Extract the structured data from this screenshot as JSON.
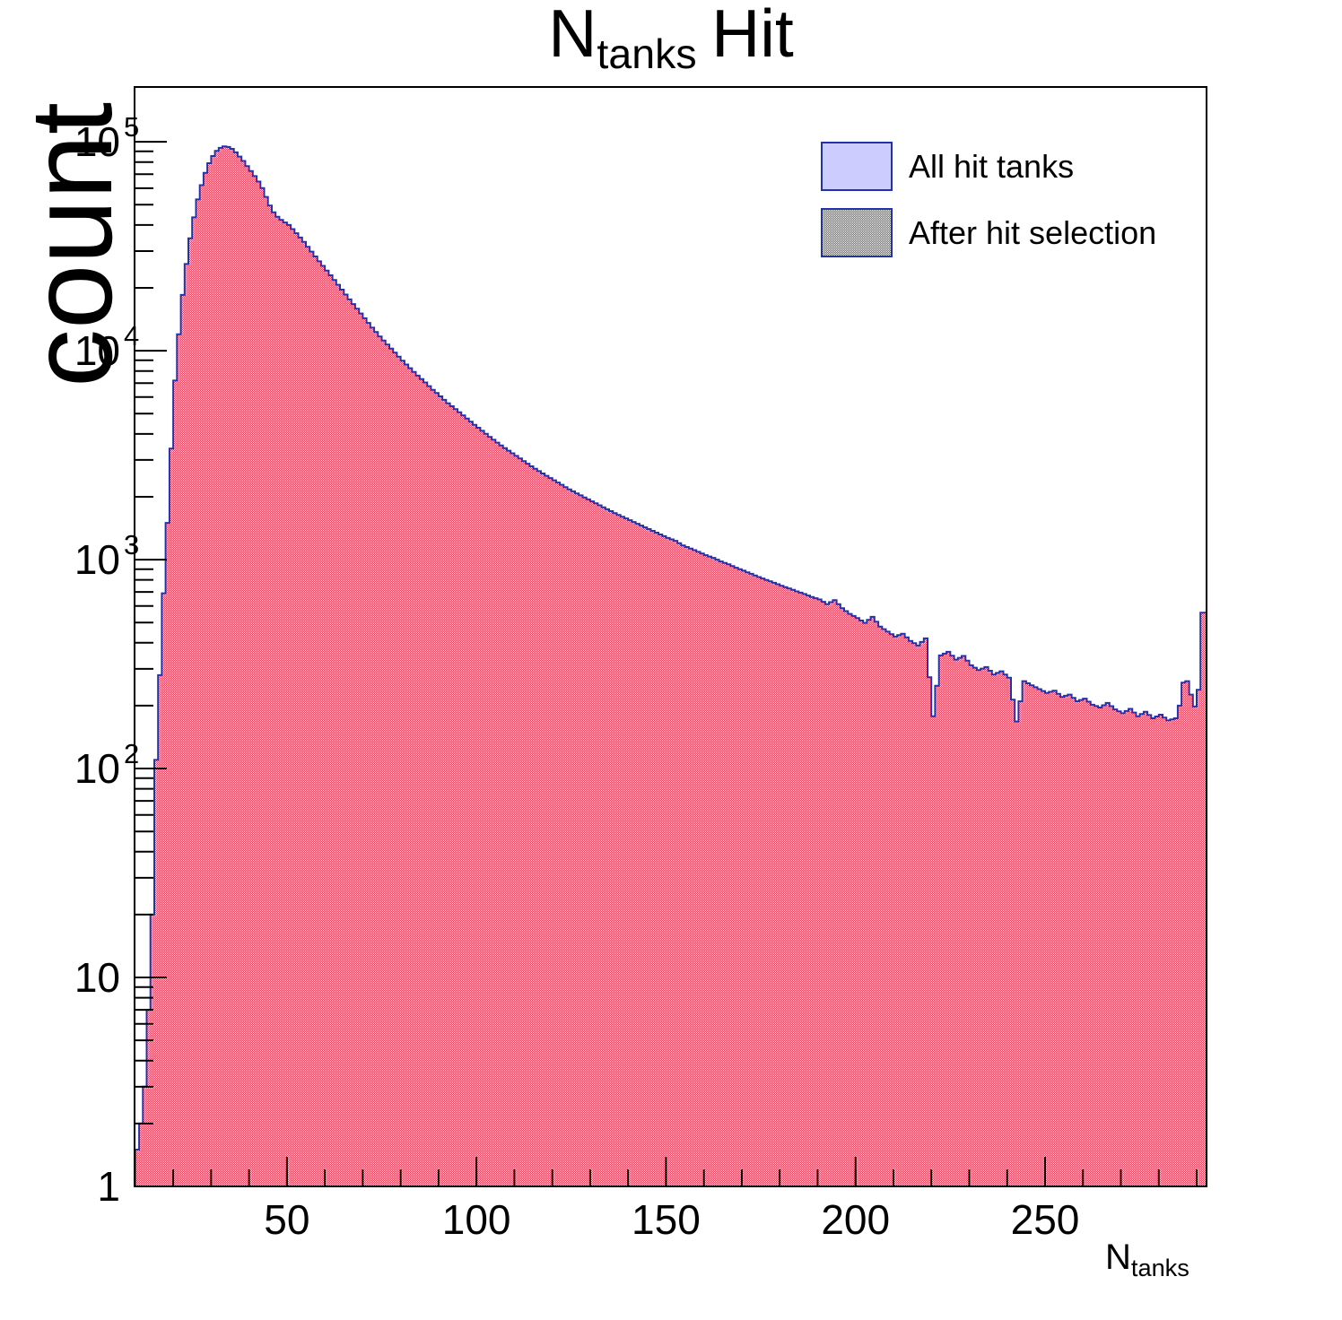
{
  "title": {
    "prefix": "N",
    "subscript": "tanks",
    "suffix": "Hit"
  },
  "axes": {
    "y_label": "count",
    "x_label": {
      "prefix": "N",
      "subscript": "tanks"
    },
    "x_ticks": [
      {
        "v": 50,
        "label": "50"
      },
      {
        "v": 100,
        "label": "100"
      },
      {
        "v": 150,
        "label": "150"
      },
      {
        "v": 200,
        "label": "200"
      },
      {
        "v": 250,
        "label": "250"
      }
    ],
    "x_minor_step": 10,
    "y_ticks": [
      {
        "v": 1,
        "m": "1"
      },
      {
        "v": 10,
        "m": "10"
      },
      {
        "v": 100,
        "m": "10",
        "e": "2"
      },
      {
        "v": 1000,
        "m": "10",
        "e": "3"
      },
      {
        "v": 10000,
        "m": "10",
        "e": "4"
      },
      {
        "v": 100000,
        "m": "10",
        "e": "5"
      }
    ]
  },
  "legend": [
    {
      "label": "All hit tanks",
      "swatch": "solid-lavender"
    },
    {
      "label": "After hit selection",
      "swatch": "red-checker-hatch"
    }
  ],
  "colors": {
    "background": "#ffffff",
    "axis": "#000000",
    "text": "#000000",
    "hist_line": "#2233aa",
    "hist_fill_all": "#ccccff",
    "hatch_red": "#e8334d",
    "hatch_bg": "#ffffff"
  },
  "chart_data": {
    "type": "bar",
    "title": "N_tanks Hit",
    "xlabel": "N_tanks",
    "ylabel": "count",
    "x_range": [
      9.8,
      292.6
    ],
    "ylim": [
      1,
      183000
    ],
    "log_y": true,
    "bin_width": 1,
    "grid": false,
    "legend_position": "top-right",
    "series": [
      {
        "name": "All hit tanks",
        "style": "solid lavender fill, navy outline",
        "values_from": "bins"
      },
      {
        "name": "After hit selection",
        "style": "red checker hatch over white, navy outline",
        "values_from": "bins",
        "note": "visually coincident with 'All hit tanks'"
      }
    ],
    "bins": [
      [
        10,
        1.5
      ],
      [
        11,
        2
      ],
      [
        12,
        3
      ],
      [
        13,
        7
      ],
      [
        14,
        20
      ],
      [
        15,
        110
      ],
      [
        16,
        280
      ],
      [
        17,
        690
      ],
      [
        18,
        1500
      ],
      [
        19,
        3400
      ],
      [
        20,
        7200
      ],
      [
        21,
        12000
      ],
      [
        22,
        18500
      ],
      [
        23,
        26000
      ],
      [
        24,
        34500
      ],
      [
        25,
        43500
      ],
      [
        26,
        53000
      ],
      [
        27,
        62000
      ],
      [
        28,
        71000
      ],
      [
        29,
        79000
      ],
      [
        30,
        85500
      ],
      [
        31,
        90500
      ],
      [
        32,
        93500
      ],
      [
        33,
        95000
      ],
      [
        34,
        94500
      ],
      [
        35,
        92500
      ],
      [
        36,
        89000
      ],
      [
        37,
        85000
      ],
      [
        38,
        81000
      ],
      [
        39,
        76500
      ],
      [
        40,
        72500
      ],
      [
        41,
        68500
      ],
      [
        42,
        64500
      ],
      [
        43,
        60000
      ],
      [
        44,
        54500
      ],
      [
        45,
        49500
      ],
      [
        46,
        46000
      ],
      [
        47,
        43800
      ],
      [
        48,
        42300
      ],
      [
        49,
        41100
      ],
      [
        50,
        40000
      ],
      [
        52,
        36500
      ],
      [
        54,
        33200
      ],
      [
        56,
        29800
      ],
      [
        58,
        26800
      ],
      [
        60,
        24200
      ],
      [
        62,
        21800
      ],
      [
        64,
        19600
      ],
      [
        66,
        17600
      ],
      [
        68,
        15900
      ],
      [
        70,
        14300
      ],
      [
        72,
        12900
      ],
      [
        74,
        11700
      ],
      [
        76,
        10700
      ],
      [
        78,
        9800
      ],
      [
        80,
        8950
      ],
      [
        82,
        8250
      ],
      [
        84,
        7600
      ],
      [
        86,
        7050
      ],
      [
        88,
        6500
      ],
      [
        90,
        6050
      ],
      [
        92,
        5600
      ],
      [
        94,
        5250
      ],
      [
        96,
        4900
      ],
      [
        98,
        4570
      ],
      [
        100,
        4280
      ],
      [
        103,
        3870
      ],
      [
        106,
        3520
      ],
      [
        109,
        3230
      ],
      [
        112,
        2960
      ],
      [
        115,
        2720
      ],
      [
        118,
        2520
      ],
      [
        121,
        2340
      ],
      [
        124,
        2170
      ],
      [
        127,
        2030
      ],
      [
        130,
        1900
      ],
      [
        133,
        1780
      ],
      [
        136,
        1670
      ],
      [
        139,
        1575
      ],
      [
        142,
        1485
      ],
      [
        145,
        1400
      ],
      [
        148,
        1320
      ],
      [
        150,
        1270
      ],
      [
        152,
        1230
      ],
      [
        154,
        1170
      ],
      [
        156,
        1130
      ],
      [
        158,
        1090
      ],
      [
        160,
        1050
      ],
      [
        162,
        1020
      ],
      [
        164,
        980
      ],
      [
        166,
        950
      ],
      [
        168,
        915
      ],
      [
        170,
        885
      ],
      [
        172,
        855
      ],
      [
        174,
        825
      ],
      [
        176,
        800
      ],
      [
        178,
        775
      ],
      [
        180,
        750
      ],
      [
        182,
        728
      ],
      [
        184,
        705
      ],
      [
        186,
        685
      ],
      [
        188,
        662
      ],
      [
        190,
        645
      ],
      [
        192,
        612
      ],
      [
        194,
        640
      ],
      [
        196,
        585
      ],
      [
        198,
        550
      ],
      [
        200,
        525
      ],
      [
        202,
        498
      ],
      [
        204,
        532
      ],
      [
        206,
        478
      ],
      [
        208,
        452
      ],
      [
        210,
        428
      ],
      [
        212,
        442
      ],
      [
        214,
        408
      ],
      [
        216,
        388
      ],
      [
        218,
        420
      ],
      [
        220,
        178
      ],
      [
        222,
        348
      ],
      [
        224,
        362
      ],
      [
        226,
        332
      ],
      [
        228,
        346
      ],
      [
        230,
        312
      ],
      [
        232,
        296
      ],
      [
        234,
        306
      ],
      [
        236,
        282
      ],
      [
        238,
        292
      ],
      [
        240,
        272
      ],
      [
        242,
        168
      ],
      [
        244,
        262
      ],
      [
        246,
        250
      ],
      [
        248,
        240
      ],
      [
        250,
        230
      ],
      [
        252,
        236
      ],
      [
        254,
        220
      ],
      [
        256,
        226
      ],
      [
        258,
        210
      ],
      [
        260,
        216
      ],
      [
        262,
        202
      ],
      [
        264,
        196
      ],
      [
        266,
        206
      ],
      [
        268,
        192
      ],
      [
        270,
        184
      ],
      [
        272,
        193
      ],
      [
        274,
        178
      ],
      [
        276,
        187
      ],
      [
        278,
        174
      ],
      [
        280,
        181
      ],
      [
        282,
        170
      ],
      [
        284,
        174
      ],
      [
        285,
        200
      ],
      [
        286,
        258
      ],
      [
        287,
        262
      ],
      [
        288,
        226
      ],
      [
        289,
        198
      ],
      [
        290,
        238
      ],
      [
        291,
        557
      ],
      [
        292,
        557
      ]
    ]
  }
}
